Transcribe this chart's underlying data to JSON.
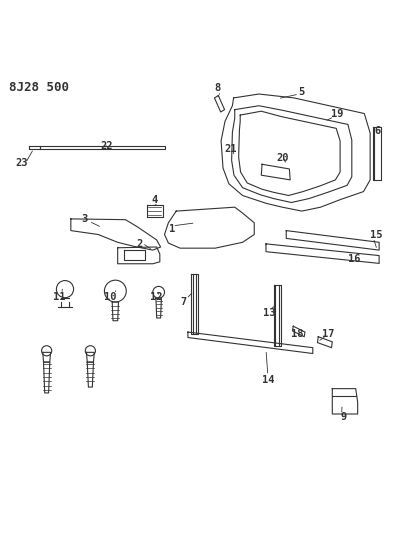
{
  "title": "8J28 500",
  "bg_color": "#ffffff",
  "line_color": "#333333",
  "title_fontsize": 9,
  "label_fontsize": 7.5,
  "figsize": [
    3.93,
    5.33
  ],
  "dpi": 100
}
